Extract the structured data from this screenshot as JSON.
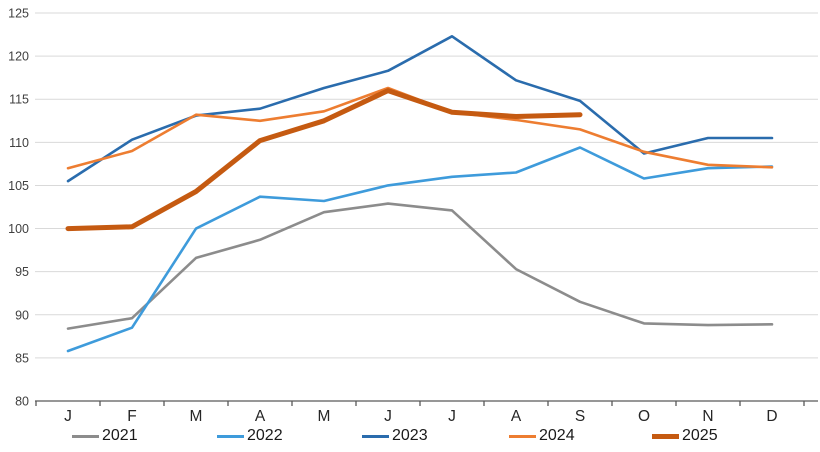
{
  "chart_data": {
    "type": "line",
    "title": "",
    "xlabel": "",
    "ylabel": "",
    "categories": [
      "J",
      "F",
      "M",
      "A",
      "M",
      "J",
      "J",
      "A",
      "S",
      "O",
      "N",
      "D"
    ],
    "y_axis": {
      "min": 80,
      "max": 125,
      "step": 5,
      "tick_labels": [
        "80",
        "85",
        "90",
        "95",
        "100",
        "105",
        "110",
        "115",
        "120",
        "125"
      ]
    },
    "grid": true,
    "legend_position": "bottom",
    "colors": {
      "background": "#FFFFFF",
      "gridline": "#D9D9D9",
      "axis_line": "#595959",
      "tick_label": "#404040",
      "month_label": "#262626"
    },
    "series": [
      {
        "name": "2021",
        "color": "#8C8C8C",
        "line_width": 2.6,
        "values": [
          88.4,
          89.6,
          96.6,
          98.7,
          101.9,
          102.9,
          102.1,
          95.3,
          91.5,
          89.0,
          88.8,
          88.9
        ]
      },
      {
        "name": "2022",
        "color": "#3E9BDB",
        "line_width": 2.6,
        "values": [
          85.8,
          88.5,
          100.0,
          103.7,
          103.2,
          105.0,
          106.0,
          106.5,
          109.4,
          105.8,
          107.0,
          107.2
        ]
      },
      {
        "name": "2023",
        "color": "#2A6CAD",
        "line_width": 2.6,
        "values": [
          105.5,
          110.3,
          113.1,
          113.9,
          116.3,
          118.3,
          122.3,
          117.2,
          114.8,
          108.7,
          110.5,
          110.5
        ]
      },
      {
        "name": "2024",
        "color": "#ED7D31",
        "line_width": 2.6,
        "values": [
          107.0,
          109.0,
          113.2,
          112.5,
          113.6,
          116.3,
          113.5,
          112.6,
          111.5,
          108.9,
          107.4,
          107.1
        ]
      },
      {
        "name": "2025",
        "color": "#C55A11",
        "line_width": 5,
        "values": [
          100.0,
          100.2,
          104.3,
          110.2,
          112.5,
          116.0,
          113.5,
          113.0,
          113.2
        ]
      }
    ]
  }
}
